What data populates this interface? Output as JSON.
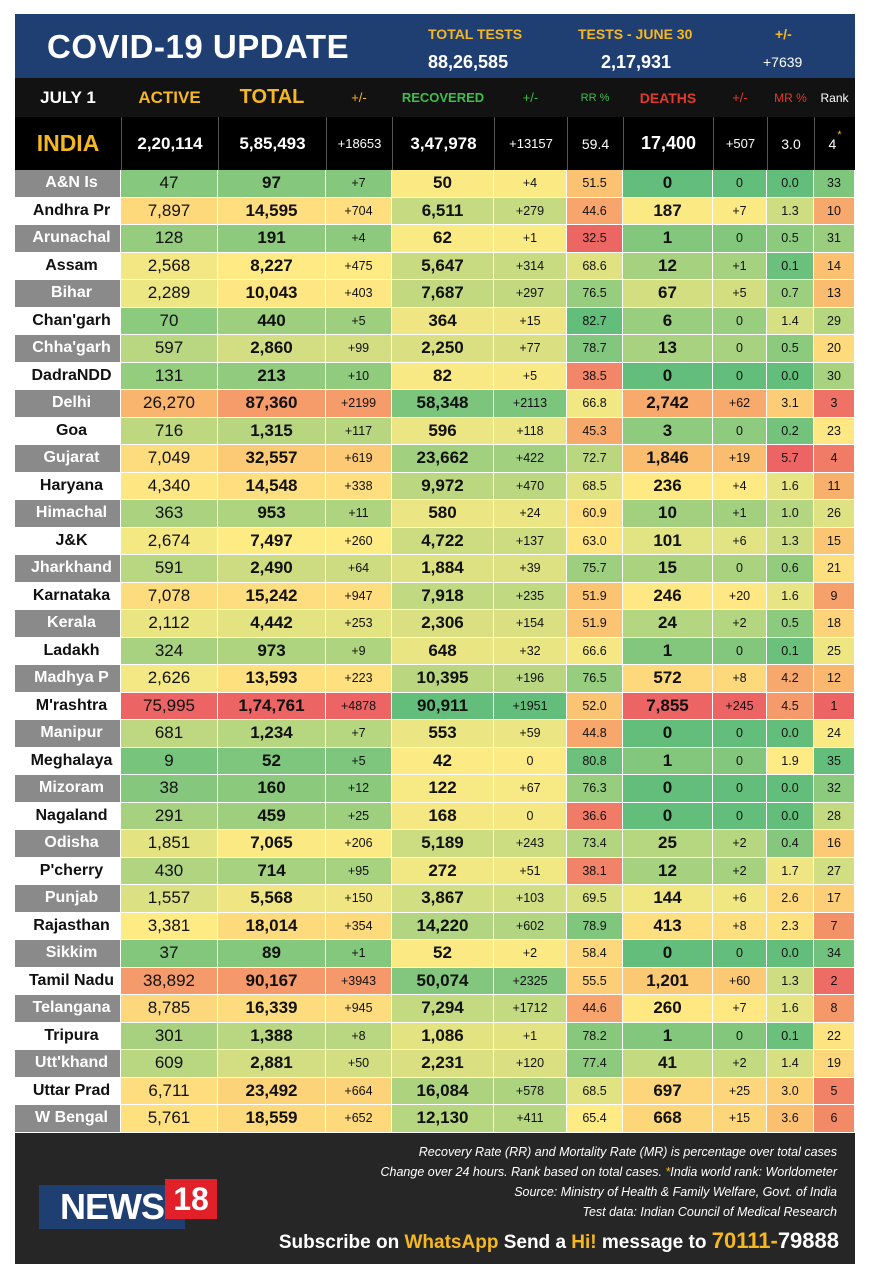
{
  "header": {
    "title": "COVID-19 UPDATE",
    "total_tests_label": "TOTAL TESTS",
    "total_tests_value": "88,26,585",
    "tests_day_label": "TESTS - JUNE 30",
    "tests_day_value": "2,17,931",
    "change_label": "+/-",
    "change_value": "+7639"
  },
  "columns": {
    "date": "JULY 1",
    "active": "ACTIVE",
    "total": "TOTAL",
    "total_change": "+/-",
    "recovered": "RECOVERED",
    "recovered_change": "+/-",
    "rr": "RR %",
    "deaths": "DEATHS",
    "deaths_change": "+/-",
    "mr": "MR %",
    "rank": "Rank"
  },
  "india": {
    "name": "INDIA",
    "active": "2,20,114",
    "total": "5,85,493",
    "total_change": "+18653",
    "recovered": "3,47,978",
    "recovered_change": "+13157",
    "rr": "59.4",
    "deaths": "17,400",
    "deaths_change": "+507",
    "mr": "3.0",
    "rank": "4",
    "rank_mark": "*"
  },
  "colors": {
    "header_bg": "#1f3f73",
    "accent_yellow": "#f5b820",
    "deaths_red": "#e23a2e",
    "recovered_green": "#3fbf4a",
    "footer_bg": "#262626",
    "name_gray": "#8a8a8a"
  },
  "states": [
    {
      "name": "A&N Is",
      "active": "47",
      "total": "97",
      "tc": "+7",
      "rec": "50",
      "rc": "+4",
      "rr": "51.5",
      "deaths": "0",
      "dc": "0",
      "mr": "0.0",
      "rank": "33"
    },
    {
      "name": "Andhra Pr",
      "active": "7,897",
      "total": "14,595",
      "tc": "+704",
      "rec": "6,511",
      "rc": "+279",
      "rr": "44.6",
      "deaths": "187",
      "dc": "+7",
      "mr": "1.3",
      "rank": "10"
    },
    {
      "name": "Arunachal",
      "active": "128",
      "total": "191",
      "tc": "+4",
      "rec": "62",
      "rc": "+1",
      "rr": "32.5",
      "deaths": "1",
      "dc": "0",
      "mr": "0.5",
      "rank": "31"
    },
    {
      "name": "Assam",
      "active": "2,568",
      "total": "8,227",
      "tc": "+475",
      "rec": "5,647",
      "rc": "+314",
      "rr": "68.6",
      "deaths": "12",
      "dc": "+1",
      "mr": "0.1",
      "rank": "14"
    },
    {
      "name": "Bihar",
      "active": "2,289",
      "total": "10,043",
      "tc": "+403",
      "rec": "7,687",
      "rc": "+297",
      "rr": "76.5",
      "deaths": "67",
      "dc": "+5",
      "mr": "0.7",
      "rank": "13"
    },
    {
      "name": "Chan'garh",
      "active": "70",
      "total": "440",
      "tc": "+5",
      "rec": "364",
      "rc": "+15",
      "rr": "82.7",
      "deaths": "6",
      "dc": "0",
      "mr": "1.4",
      "rank": "29"
    },
    {
      "name": "Chha'garh",
      "active": "597",
      "total": "2,860",
      "tc": "+99",
      "rec": "2,250",
      "rc": "+77",
      "rr": "78.7",
      "deaths": "13",
      "dc": "0",
      "mr": "0.5",
      "rank": "20"
    },
    {
      "name": "DadraNDD",
      "active": "131",
      "total": "213",
      "tc": "+10",
      "rec": "82",
      "rc": "+5",
      "rr": "38.5",
      "deaths": "0",
      "dc": "0",
      "mr": "0.0",
      "rank": "30"
    },
    {
      "name": "Delhi",
      "active": "26,270",
      "total": "87,360",
      "tc": "+2199",
      "rec": "58,348",
      "rc": "+2113",
      "rr": "66.8",
      "deaths": "2,742",
      "dc": "+62",
      "mr": "3.1",
      "rank": "3"
    },
    {
      "name": "Goa",
      "active": "716",
      "total": "1,315",
      "tc": "+117",
      "rec": "596",
      "rc": "+118",
      "rr": "45.3",
      "deaths": "3",
      "dc": "0",
      "mr": "0.2",
      "rank": "23"
    },
    {
      "name": "Gujarat",
      "active": "7,049",
      "total": "32,557",
      "tc": "+619",
      "rec": "23,662",
      "rc": "+422",
      "rr": "72.7",
      "deaths": "1,846",
      "dc": "+19",
      "mr": "5.7",
      "rank": "4"
    },
    {
      "name": "Haryana",
      "active": "4,340",
      "total": "14,548",
      "tc": "+338",
      "rec": "9,972",
      "rc": "+470",
      "rr": "68.5",
      "deaths": "236",
      "dc": "+4",
      "mr": "1.6",
      "rank": "11"
    },
    {
      "name": "Himachal",
      "active": "363",
      "total": "953",
      "tc": "+11",
      "rec": "580",
      "rc": "+24",
      "rr": "60.9",
      "deaths": "10",
      "dc": "+1",
      "mr": "1.0",
      "rank": "26"
    },
    {
      "name": "J&K",
      "active": "2,674",
      "total": "7,497",
      "tc": "+260",
      "rec": "4,722",
      "rc": "+137",
      "rr": "63.0",
      "deaths": "101",
      "dc": "+6",
      "mr": "1.3",
      "rank": "15"
    },
    {
      "name": "Jharkhand",
      "active": "591",
      "total": "2,490",
      "tc": "+64",
      "rec": "1,884",
      "rc": "+39",
      "rr": "75.7",
      "deaths": "15",
      "dc": "0",
      "mr": "0.6",
      "rank": "21"
    },
    {
      "name": "Karnataka",
      "active": "7,078",
      "total": "15,242",
      "tc": "+947",
      "rec": "7,918",
      "rc": "+235",
      "rr": "51.9",
      "deaths": "246",
      "dc": "+20",
      "mr": "1.6",
      "rank": "9"
    },
    {
      "name": "Kerala",
      "active": "2,112",
      "total": "4,442",
      "tc": "+253",
      "rec": "2,306",
      "rc": "+154",
      "rr": "51.9",
      "deaths": "24",
      "dc": "+2",
      "mr": "0.5",
      "rank": "18"
    },
    {
      "name": "Ladakh",
      "active": "324",
      "total": "973",
      "tc": "+9",
      "rec": "648",
      "rc": "+32",
      "rr": "66.6",
      "deaths": "1",
      "dc": "0",
      "mr": "0.1",
      "rank": "25"
    },
    {
      "name": "Madhya P",
      "active": "2,626",
      "total": "13,593",
      "tc": "+223",
      "rec": "10,395",
      "rc": "+196",
      "rr": "76.5",
      "deaths": "572",
      "dc": "+8",
      "mr": "4.2",
      "rank": "12"
    },
    {
      "name": "M'rashtra",
      "active": "75,995",
      "total": "1,74,761",
      "tc": "+4878",
      "rec": "90,911",
      "rc": "+1951",
      "rr": "52.0",
      "deaths": "7,855",
      "dc": "+245",
      "mr": "4.5",
      "rank": "1"
    },
    {
      "name": "Manipur",
      "active": "681",
      "total": "1,234",
      "tc": "+7",
      "rec": "553",
      "rc": "+59",
      "rr": "44.8",
      "deaths": "0",
      "dc": "0",
      "mr": "0.0",
      "rank": "24"
    },
    {
      "name": "Meghalaya",
      "active": "9",
      "total": "52",
      "tc": "+5",
      "rec": "42",
      "rc": "0",
      "rr": "80.8",
      "deaths": "1",
      "dc": "0",
      "mr": "1.9",
      "rank": "35"
    },
    {
      "name": "Mizoram",
      "active": "38",
      "total": "160",
      "tc": "+12",
      "rec": "122",
      "rc": "+67",
      "rr": "76.3",
      "deaths": "0",
      "dc": "0",
      "mr": "0.0",
      "rank": "32"
    },
    {
      "name": "Nagaland",
      "active": "291",
      "total": "459",
      "tc": "+25",
      "rec": "168",
      "rc": "0",
      "rr": "36.6",
      "deaths": "0",
      "dc": "0",
      "mr": "0.0",
      "rank": "28"
    },
    {
      "name": "Odisha",
      "active": "1,851",
      "total": "7,065",
      "tc": "+206",
      "rec": "5,189",
      "rc": "+243",
      "rr": "73.4",
      "deaths": "25",
      "dc": "+2",
      "mr": "0.4",
      "rank": "16"
    },
    {
      "name": "P'cherry",
      "active": "430",
      "total": "714",
      "tc": "+95",
      "rec": "272",
      "rc": "+51",
      "rr": "38.1",
      "deaths": "12",
      "dc": "+2",
      "mr": "1.7",
      "rank": "27"
    },
    {
      "name": "Punjab",
      "active": "1,557",
      "total": "5,568",
      "tc": "+150",
      "rec": "3,867",
      "rc": "+103",
      "rr": "69.5",
      "deaths": "144",
      "dc": "+6",
      "mr": "2.6",
      "rank": "17"
    },
    {
      "name": "Rajasthan",
      "active": "3,381",
      "total": "18,014",
      "tc": "+354",
      "rec": "14,220",
      "rc": "+602",
      "rr": "78.9",
      "deaths": "413",
      "dc": "+8",
      "mr": "2.3",
      "rank": "7"
    },
    {
      "name": "Sikkim",
      "active": "37",
      "total": "89",
      "tc": "+1",
      "rec": "52",
      "rc": "+2",
      "rr": "58.4",
      "deaths": "0",
      "dc": "0",
      "mr": "0.0",
      "rank": "34"
    },
    {
      "name": "Tamil Nadu",
      "active": "38,892",
      "total": "90,167",
      "tc": "+3943",
      "rec": "50,074",
      "rc": "+2325",
      "rr": "55.5",
      "deaths": "1,201",
      "dc": "+60",
      "mr": "1.3",
      "rank": "2"
    },
    {
      "name": "Telangana",
      "active": "8,785",
      "total": "16,339",
      "tc": "+945",
      "rec": "7,294",
      "rc": "+1712",
      "rr": "44.6",
      "deaths": "260",
      "dc": "+7",
      "mr": "1.6",
      "rank": "8"
    },
    {
      "name": "Tripura",
      "active": "301",
      "total": "1,388",
      "tc": "+8",
      "rec": "1,086",
      "rc": "+1",
      "rr": "78.2",
      "deaths": "1",
      "dc": "0",
      "mr": "0.1",
      "rank": "22"
    },
    {
      "name": "Utt'khand",
      "active": "609",
      "total": "2,881",
      "tc": "+50",
      "rec": "2,231",
      "rc": "+120",
      "rr": "77.4",
      "deaths": "41",
      "dc": "+2",
      "mr": "1.4",
      "rank": "19"
    },
    {
      "name": "Uttar Prad",
      "active": "6,711",
      "total": "23,492",
      "tc": "+664",
      "rec": "16,084",
      "rc": "+578",
      "rr": "68.5",
      "deaths": "697",
      "dc": "+25",
      "mr": "3.0",
      "rank": "5"
    },
    {
      "name": "W Bengal",
      "active": "5,761",
      "total": "18,559",
      "tc": "+652",
      "rec": "12,130",
      "rc": "+411",
      "rr": "65.4",
      "deaths": "668",
      "dc": "+15",
      "mr": "3.6",
      "rank": "6"
    }
  ],
  "footer": {
    "note1": "Recovery Rate (RR) and Mortality Rate (MR) is percentage over total cases",
    "note2a": "Change over 24 hours. Rank based on total cases. ",
    "note2b": "*",
    "note2c": "India world rank: Worldometer",
    "note3": "Source: Ministry of Health & Family Welfare, Govt. of India",
    "note4": "Test data: Indian Council of Medical Research",
    "logo_news": "NEWS",
    "logo_18": "18",
    "subscribe_a": "Subscribe on ",
    "subscribe_whatsapp": "WhatsApp",
    "subscribe_b": " Send a ",
    "subscribe_hi": "Hi!",
    "subscribe_c": " message to ",
    "phone_a": "70111-",
    "phone_b": "79888"
  }
}
